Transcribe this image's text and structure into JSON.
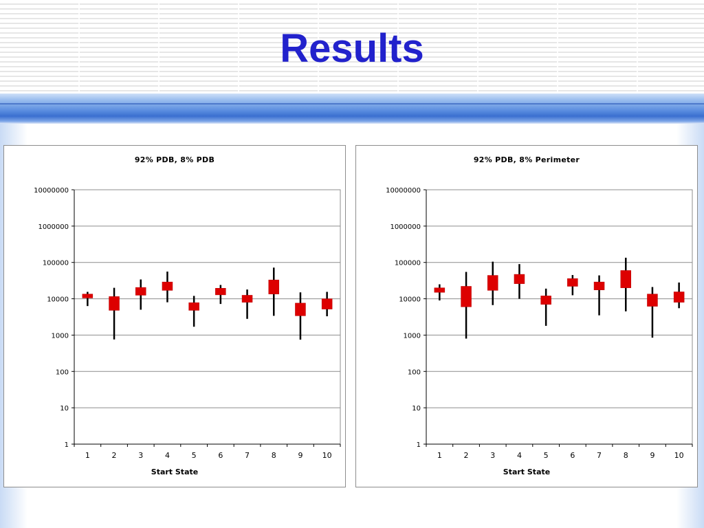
{
  "slide": {
    "title": "Results"
  },
  "chart_data": [
    {
      "type": "candlestick",
      "title": "92% PDB, 8% PDB",
      "xlabel": "Start State",
      "ylabel": "",
      "yscale": "log",
      "ylim": [
        1,
        10000000
      ],
      "yticks": [
        "1",
        "10",
        "100",
        "1000",
        "10000",
        "100000",
        "1000000",
        "10000000"
      ],
      "categories": [
        "1",
        "2",
        "3",
        "4",
        "5",
        "6",
        "7",
        "8",
        "9",
        "10"
      ],
      "grid": "horizontal",
      "legend": "none",
      "box_color": "#dd0000",
      "whisker_color": "#000000",
      "series": [
        {
          "low": [
            6300,
            760,
            5000,
            8000,
            1700,
            7200,
            2800,
            3400,
            750,
            3300
          ],
          "q1": [
            10500,
            4800,
            12500,
            17000,
            4800,
            12800,
            8000,
            13500,
            3400,
            5200
          ],
          "q3": [
            13500,
            11500,
            20500,
            29000,
            7800,
            19500,
            12500,
            33000,
            7600,
            10000
          ],
          "high": [
            15500,
            20000,
            34000,
            56000,
            12000,
            24000,
            18000,
            72000,
            15000,
            15500
          ]
        }
      ]
    },
    {
      "type": "candlestick",
      "title": "92% PDB, 8% Perimeter",
      "xlabel": "Start State",
      "ylabel": "",
      "yscale": "log",
      "ylim": [
        1,
        10000000
      ],
      "yticks": [
        "1",
        "10",
        "100",
        "1000",
        "10000",
        "100000",
        "1000000",
        "10000000"
      ],
      "categories": [
        "1",
        "2",
        "3",
        "4",
        "5",
        "6",
        "7",
        "8",
        "9",
        "10"
      ],
      "grid": "horizontal",
      "legend": "none",
      "box_color": "#dd0000",
      "whisker_color": "#000000",
      "series": [
        {
          "low": [
            9000,
            800,
            6700,
            10000,
            1800,
            12500,
            3500,
            4500,
            850,
            5500
          ],
          "q1": [
            15000,
            6000,
            17000,
            26000,
            7000,
            22000,
            17500,
            20000,
            6200,
            8000
          ],
          "q3": [
            20000,
            22000,
            44000,
            47000,
            12000,
            36000,
            29000,
            60000,
            13500,
            15500
          ],
          "high": [
            25000,
            55000,
            105000,
            90000,
            19000,
            45000,
            44000,
            135000,
            21000,
            28000
          ]
        }
      ]
    }
  ]
}
